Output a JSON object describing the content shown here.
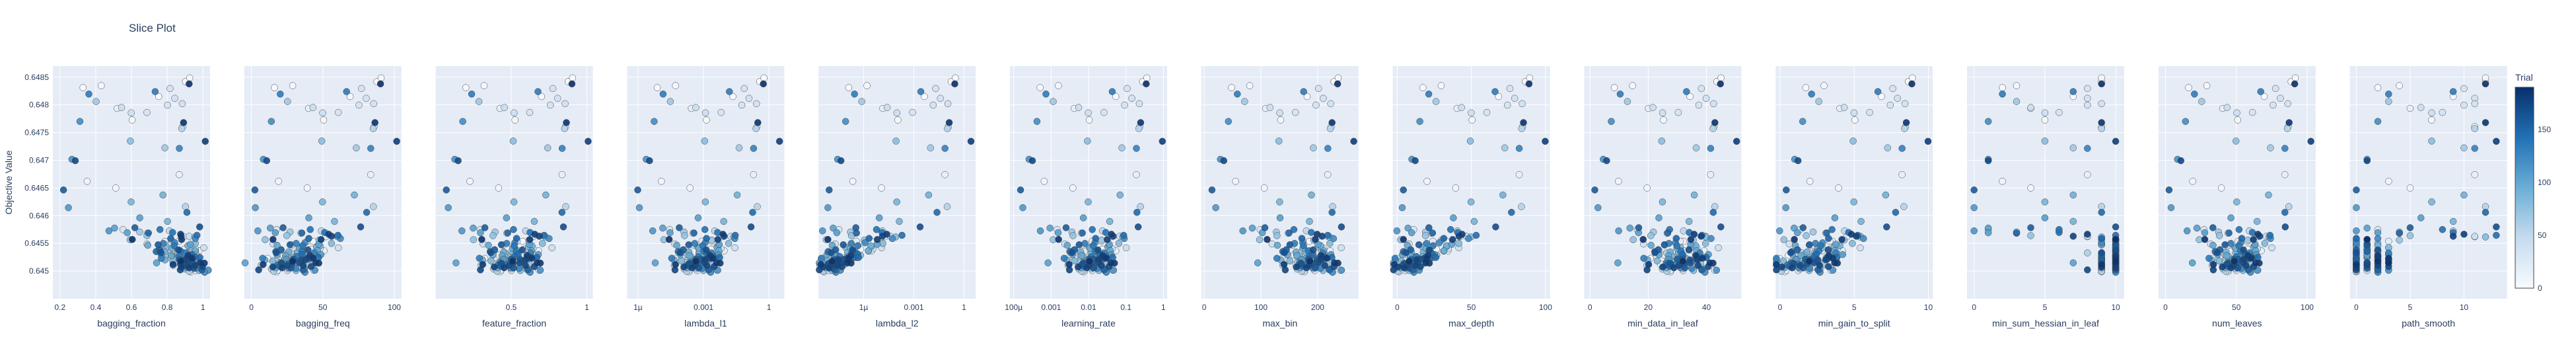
{
  "title": "Slice Plot",
  "chart_data": {
    "type": "scatter",
    "title": "Slice Plot",
    "ylabel": "Objective Value",
    "ylim": [
      0.6445,
      0.6487
    ],
    "yticks": [
      0.645,
      0.6455,
      0.646,
      0.6465,
      0.647,
      0.6475,
      0.648,
      0.6485
    ],
    "ytick_labels": [
      "0.645",
      "0.6455",
      "0.646",
      "0.6465",
      "0.647",
      "0.6475",
      "0.648",
      "0.6485"
    ],
    "colorbar": {
      "title": "Trial",
      "range": [
        0,
        190
      ],
      "ticks": [
        0,
        50,
        100,
        150
      ],
      "colorscale": [
        "#f7fbff",
        "#c6dbef",
        "#6baed6",
        "#2171b5",
        "#08306b"
      ]
    },
    "grid": true,
    "background": "#e5ecf6",
    "gridline_color": "#ffffff",
    "marker_edge_color": "#444444",
    "n_trials": 190,
    "panels": [
      {
        "xlabel": "bagging_fraction",
        "scale": "linear",
        "xlim": [
          0.16,
          1.04
        ],
        "ticks": [
          0.2,
          0.4,
          0.6,
          0.8,
          1
        ],
        "tick_labels": [
          "0.2",
          "0.4",
          "0.6",
          "0.8",
          "1"
        ],
        "x_good": 0.96,
        "x_spread": 0.04
      },
      {
        "xlabel": "bagging_freq",
        "scale": "linear",
        "xlim": [
          -5,
          105
        ],
        "ticks": [
          0,
          50,
          100
        ],
        "tick_labels": [
          "0",
          "50",
          "100"
        ],
        "x_good": 25,
        "x_spread": 10
      },
      {
        "xlabel": "feature_fraction",
        "scale": "linear",
        "xlim": [
          0,
          1.04
        ],
        "ticks": [
          0.5,
          1
        ],
        "tick_labels": [
          "0.5",
          "1"
        ],
        "x_good": 0.5,
        "x_spread": 0.1
      },
      {
        "xlabel": "lambda_l1",
        "scale": "log",
        "xlim": [
          -6.5,
          0.7
        ],
        "ticks": [
          -6,
          -3,
          0
        ],
        "tick_labels": [
          "1µ",
          "0.001",
          "1"
        ],
        "x_good": -3.3,
        "x_spread": 0.5
      },
      {
        "xlabel": "lambda_l2",
        "scale": "log",
        "xlim": [
          -8.7,
          0.7
        ],
        "ticks": [
          -6,
          -3,
          0
        ],
        "tick_labels": [
          "1µ",
          "0.001",
          "1"
        ],
        "x_good": -8.1,
        "x_spread": 0.35
      },
      {
        "xlabel": "learning_rate",
        "scale": "log",
        "xlim": [
          -4.1,
          0.1
        ],
        "ticks": [
          -4,
          -3,
          -2,
          -1,
          0
        ],
        "tick_labels": [
          "100µ",
          "0.001",
          "0.01",
          "0.1",
          "1"
        ],
        "x_good": -1.9,
        "x_spread": 0.3
      },
      {
        "xlabel": "max_bin",
        "scale": "linear",
        "xlim": [
          -5,
          272
        ],
        "ticks": [
          0,
          100,
          200
        ],
        "tick_labels": [
          "0",
          "100",
          "200"
        ],
        "x_good": 195,
        "x_spread": 25
      },
      {
        "xlabel": "max_depth",
        "scale": "linear",
        "xlim": [
          -3,
          103
        ],
        "ticks": [
          0,
          50,
          100
        ],
        "tick_labels": [
          "0",
          "50",
          "100"
        ],
        "x_good": 5,
        "x_spread": 5
      },
      {
        "xlabel": "min_data_in_leaf",
        "scale": "linear",
        "xlim": [
          -2,
          52
        ],
        "ticks": [
          0,
          20,
          40
        ],
        "tick_labels": [
          "0",
          "20",
          "40"
        ],
        "x_good": 32,
        "x_spread": 6
      },
      {
        "xlabel": "min_gain_to_split",
        "scale": "linear",
        "xlim": [
          -0.3,
          10.3
        ],
        "ticks": [
          0,
          5,
          10
        ],
        "tick_labels": [
          "0",
          "5",
          "10"
        ],
        "x_good": 1.2,
        "x_spread": 1.2
      },
      {
        "xlabel": "min_sum_hessian_in_leaf",
        "scale": "linear",
        "xlim": [
          -0.5,
          10.6
        ],
        "ticks": [
          0,
          5,
          10
        ],
        "tick_labels": [
          "0",
          "5",
          "10"
        ],
        "x_good": 10,
        "x_spread": 0.4
      },
      {
        "xlabel": "num_leaves",
        "scale": "linear",
        "xlim": [
          -5,
          106
        ],
        "ticks": [
          0,
          50,
          100
        ],
        "tick_labels": [
          "0",
          "50",
          "100"
        ],
        "x_good": 50,
        "x_spread": 8
      },
      {
        "xlabel": "path_smooth",
        "scale": "linear",
        "xlim": [
          -0.6,
          14
        ],
        "ticks": [
          0,
          5,
          10
        ],
        "tick_labels": [
          "0",
          "5",
          "10"
        ],
        "x_good": 0.8,
        "x_spread": 0.6
      }
    ]
  }
}
